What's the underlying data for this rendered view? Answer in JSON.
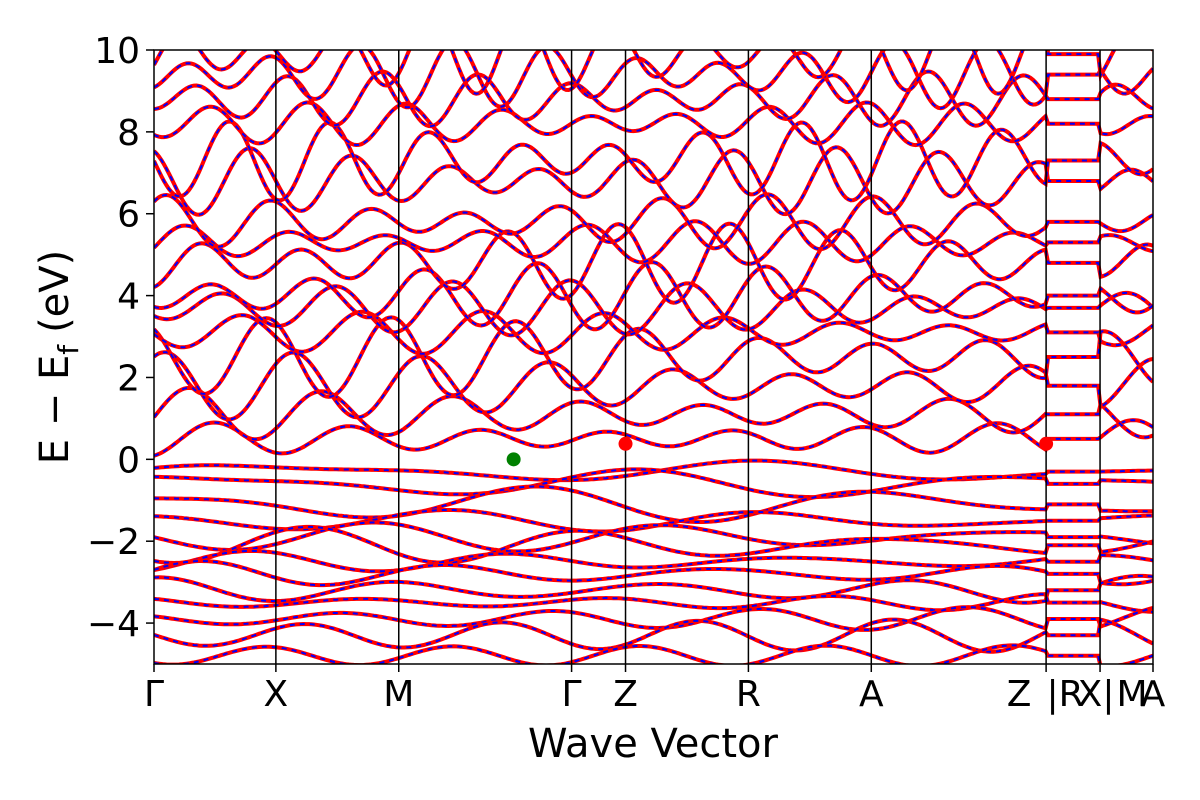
{
  "chart_data": {
    "type": "line",
    "xlabel": "Wave Vector",
    "ylabel": "E − E",
    "ylabel_sub": "f",
    "ylabel_unit": "(eV)",
    "ylim": [
      -5,
      10
    ],
    "y_ticks": [
      -4,
      -2,
      0,
      2,
      4,
      6,
      8,
      10
    ],
    "y_tick_labels": [
      "−4",
      "−2",
      "0",
      "2",
      "4",
      "6",
      "8",
      "10"
    ],
    "x_range": [
      0,
      10
    ],
    "kpoint_positions": [
      0,
      1.22,
      2.45,
      4.18,
      4.72,
      5.95,
      7.18,
      8.93,
      9.47,
      10.0
    ],
    "kpoint_labels": [
      "Γ",
      "X",
      "M",
      "Γ",
      "Z",
      "R",
      "A",
      "Z",
      "|R",
      "X|",
      "M",
      "A"
    ],
    "kpoint_label_positions": [
      0,
      1.22,
      2.45,
      4.18,
      4.72,
      5.95,
      7.18,
      8.66,
      9.12,
      9.43,
      9.79,
      10.0
    ],
    "segment_breaks": [
      8.93,
      9.47
    ],
    "series_colors": {
      "line": "#ff0000",
      "dash": "#0000ff"
    },
    "marker_colors": {
      "vbm": "#008000",
      "cbm": "#ff0000"
    },
    "vbm": {
      "x": 3.6,
      "y": 0.0
    },
    "cbm": [
      {
        "x": 4.72,
        "y": 0.38
      },
      {
        "x": 8.93,
        "y": 0.38
      }
    ],
    "band_groups": {
      "valence": [
        -0.3,
        -0.6,
        -1.1,
        -1.5,
        -1.9,
        -2.1,
        -2.5,
        -2.8,
        -3.2,
        -3.5,
        -3.9,
        -4.3,
        -4.8
      ],
      "conduction": [
        0.5,
        1.1,
        1.8,
        2.5,
        3.1,
        3.7,
        4.0,
        4.8,
        5.3,
        5.8,
        6.8,
        7.3,
        8.2,
        8.8,
        9.4,
        9.9
      ]
    }
  }
}
